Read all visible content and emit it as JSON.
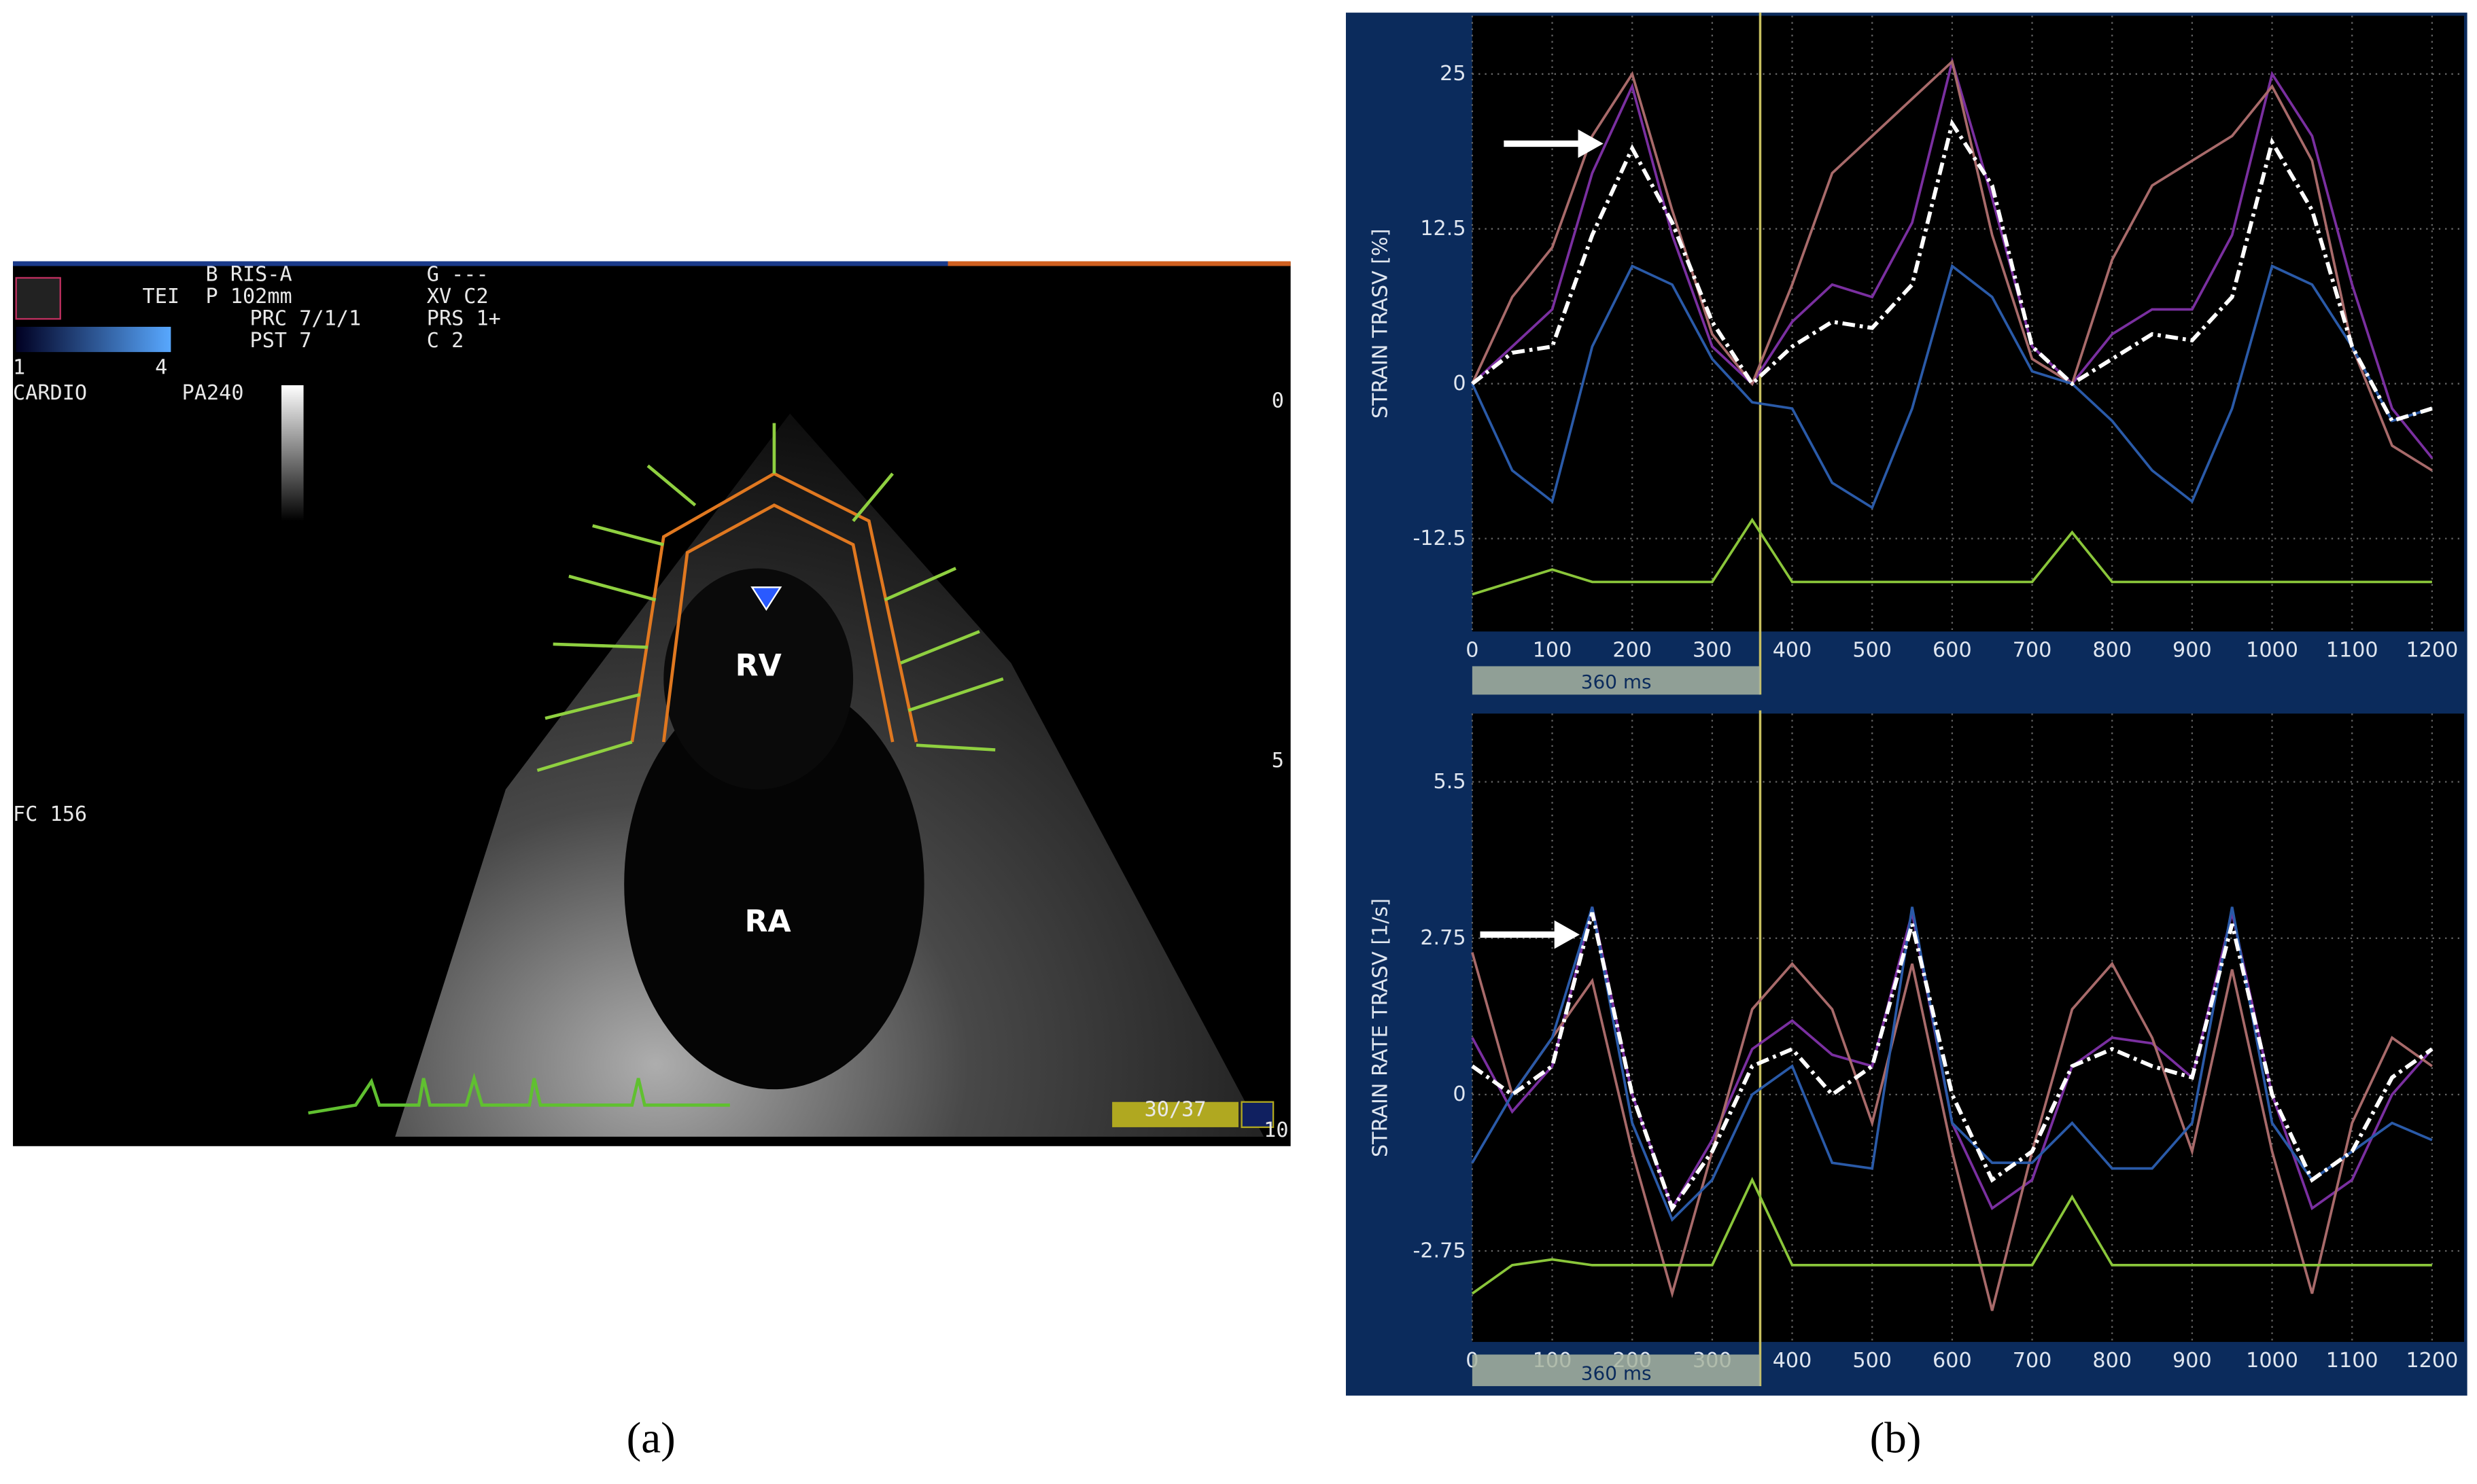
{
  "panel_a": {
    "texts": [
      "B RIS-A",
      "G ---",
      "TEI",
      "P 102mm",
      "XV  C2",
      "PRC  7/1/1",
      "PRS  1+",
      "PST  7",
      "C  2",
      "1",
      "4",
      "CARDIO",
      "PA240",
      "FC 156",
      "RV",
      "RA",
      "0",
      "5",
      "10",
      "30/37"
    ]
  },
  "captions": [
    "(a)",
    "(b)"
  ],
  "chart_data": [
    {
      "type": "line",
      "y_label": "STRAIN TRASV [%]",
      "bar_label": "360 ms",
      "marker_x": 360,
      "x": [
        0,
        50,
        100,
        150,
        200,
        250,
        300,
        350,
        400,
        450,
        500,
        550,
        600,
        650,
        700,
        750,
        800,
        850,
        900,
        950,
        1000,
        1050,
        1100,
        1150,
        1200
      ],
      "xlim": [
        0,
        1240
      ],
      "xticks": [
        0,
        100,
        200,
        300,
        400,
        500,
        600,
        700,
        800,
        900,
        1000,
        1100,
        1200
      ],
      "ylim": [
        -20,
        29.7
      ],
      "yticks": [
        25,
        12.5,
        0,
        -12.5
      ],
      "grid": true,
      "series": [
        {
          "color": "#7a2fa0",
          "values": [
            0,
            3,
            6,
            17,
            24,
            12,
            3,
            0,
            5,
            8,
            7,
            13,
            26,
            15,
            3,
            0,
            4,
            6,
            6,
            12,
            25,
            20,
            8,
            -2,
            -6
          ]
        },
        {
          "color": "#a86a6a",
          "values": [
            0,
            7,
            11,
            20,
            25,
            14,
            4,
            0,
            8,
            17,
            20,
            23,
            26,
            12,
            2,
            0,
            10,
            16,
            18,
            20,
            24,
            18,
            3,
            -5,
            -7
          ]
        },
        {
          "color": "#2a5aa8",
          "values": [
            0,
            -7,
            -9.5,
            3,
            9.5,
            8,
            2,
            -1.5,
            -2,
            -8,
            -10,
            -2,
            9.5,
            7,
            1,
            0,
            -3,
            -7,
            -9.5,
            -2,
            9.5,
            8,
            3,
            -3,
            -2
          ]
        },
        {
          "color": "#ffffff",
          "dash": true,
          "values": [
            0,
            2.5,
            3,
            12,
            19,
            13,
            5,
            0,
            3,
            5,
            4.5,
            8,
            21,
            16,
            3,
            0,
            2,
            4,
            3.5,
            7,
            19.5,
            14,
            3,
            -3,
            -2
          ]
        },
        {
          "color": "#8ac63a",
          "values": [
            -17,
            -16,
            -15,
            -16,
            -16,
            -16,
            -16,
            -11,
            -16,
            -16,
            -16,
            -16,
            -16,
            -16,
            -16,
            -12,
            -16,
            -16,
            -16,
            -16,
            -16,
            -16,
            -16,
            -16,
            -16
          ]
        }
      ]
    },
    {
      "type": "line",
      "y_label": "STRAIN RATE TRASV [1/s]",
      "bar_label": "360 ms",
      "marker_x": 360,
      "x": [
        0,
        50,
        100,
        150,
        200,
        250,
        300,
        350,
        400,
        450,
        500,
        550,
        600,
        650,
        700,
        750,
        800,
        850,
        900,
        950,
        1000,
        1050,
        1100,
        1150,
        1200
      ],
      "xlim": [
        0,
        1240
      ],
      "xticks": [
        0,
        100,
        200,
        300,
        400,
        500,
        600,
        700,
        800,
        900,
        1000,
        1100,
        1200
      ],
      "ylim": [
        -4.35,
        6.7
      ],
      "yticks": [
        5.5,
        2.75,
        0,
        -2.75
      ],
      "grid": true,
      "series": [
        {
          "color": "#7a2fa0",
          "values": [
            1,
            -0.3,
            0.5,
            3.3,
            0,
            -2,
            -0.8,
            0.8,
            1.3,
            0.7,
            0.5,
            3.2,
            -0.5,
            -2,
            -1.5,
            0.5,
            1,
            0.9,
            0.3,
            3.2,
            0,
            -2,
            -1.5,
            0,
            0.8
          ]
        },
        {
          "color": "#a86a6a",
          "values": [
            2.5,
            0,
            1,
            2,
            -1,
            -3.5,
            -1,
            1.5,
            2.3,
            1.5,
            -0.5,
            2.3,
            -1,
            -3.8,
            -1,
            1.5,
            2.3,
            1,
            -1,
            2.2,
            -1,
            -3.5,
            -0.5,
            1,
            0.5
          ]
        },
        {
          "color": "#2a5aa8",
          "values": [
            -1.2,
            0,
            1,
            3.3,
            -0.5,
            -2.2,
            -1.5,
            0,
            0.5,
            -1.2,
            -1.3,
            3.3,
            -0.5,
            -1.2,
            -1.2,
            -0.5,
            -1.3,
            -1.3,
            -0.5,
            3.3,
            -0.5,
            -1.5,
            -1,
            -0.5,
            -0.8
          ]
        },
        {
          "color": "#ffffff",
          "dash": true,
          "values": [
            0.5,
            0,
            0.5,
            3.2,
            0,
            -2,
            -1,
            0.5,
            0.8,
            0,
            0.5,
            3,
            0,
            -1.5,
            -1,
            0.5,
            0.8,
            0.5,
            0.3,
            3,
            0,
            -1.5,
            -1,
            0.3,
            0.8
          ]
        },
        {
          "color": "#8ac63a",
          "values": [
            -3.5,
            -3,
            -2.9,
            -3,
            -3,
            -3,
            -3,
            -1.5,
            -3,
            -3,
            -3,
            -3,
            -3,
            -3,
            -3,
            -1.8,
            -3,
            -3,
            -3,
            -3,
            -3,
            -3,
            -3,
            -3,
            -3
          ]
        }
      ]
    }
  ]
}
